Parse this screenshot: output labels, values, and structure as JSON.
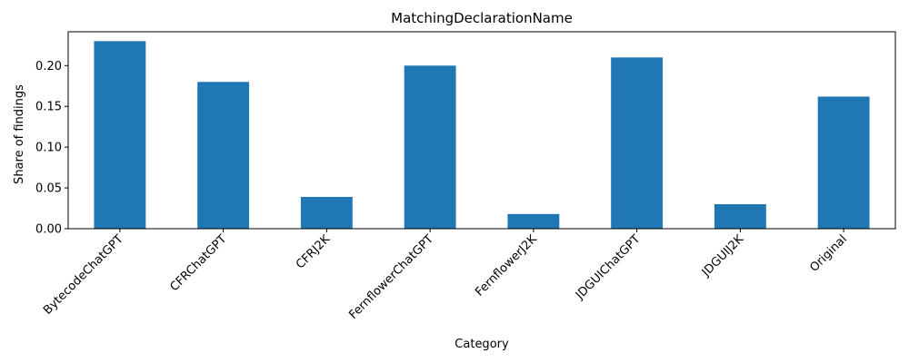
{
  "chart_data": {
    "type": "bar",
    "title": "MatchingDeclarationName",
    "xlabel": "Category",
    "ylabel": "Share of findings",
    "categories": [
      "BytecodeChatGPT",
      "CFRChatGPT",
      "CFRJ2K",
      "FernflowerChatGPT",
      "FernflowerJ2K",
      "JDGUIChatGPT",
      "JDGUIJ2K",
      "Original"
    ],
    "values": [
      0.23,
      0.18,
      0.039,
      0.2,
      0.018,
      0.21,
      0.03,
      0.162
    ],
    "ylim": [
      0,
      0.2415
    ],
    "yticks": [
      0.0,
      0.05,
      0.1,
      0.15,
      0.2
    ],
    "ytick_labels": [
      "0.00",
      "0.05",
      "0.10",
      "0.15",
      "0.20"
    ],
    "bar_color": "#1f77b4",
    "grid": false
  }
}
